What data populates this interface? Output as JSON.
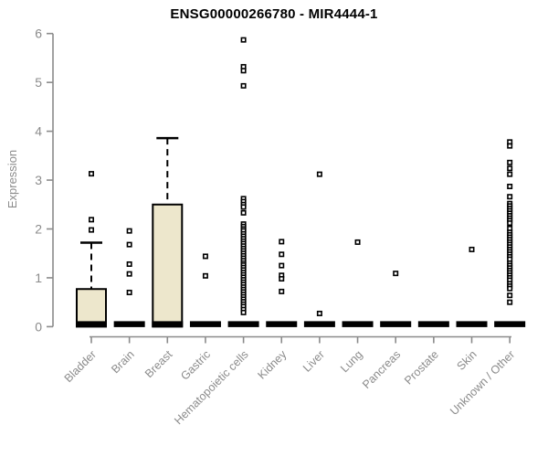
{
  "title": "ENSG00000266780 - MIR4444-1",
  "colors": {
    "background": "#ffffff",
    "box_fill": "#ede7cc",
    "box_border": "#000000",
    "median": "#000000",
    "outlier_stroke": "#000000",
    "outlier_fill": "#ffffff",
    "axis": "#8b8b8b",
    "tick_label": "#8b8b8b",
    "title_color": "#000000"
  },
  "chart_data": {
    "type": "boxplot",
    "title": "ENSG00000266780 - MIR4444-1",
    "xlabel": "",
    "ylabel": "Expression",
    "ylim": [
      0,
      6
    ],
    "yticks": [
      0,
      1,
      2,
      3,
      4,
      5,
      6
    ],
    "grid": false,
    "legend": "none",
    "categories": [
      "Bladder",
      "Brain",
      "Breast",
      "Gastric",
      "Hematopoietic cells",
      "Kidney",
      "Liver",
      "Lung",
      "Pancreas",
      "Prostate",
      "Skin",
      "Unknown / Other"
    ],
    "series": [
      {
        "category": "Bladder",
        "whisker_low": 0,
        "q1": 0,
        "median": 0,
        "q3": 0.77,
        "whisker_high": 1.72,
        "outliers": [
          3.13,
          2.19,
          1.98
        ]
      },
      {
        "category": "Brain",
        "whisker_low": 0,
        "q1": 0,
        "median": 0,
        "q3": 0,
        "whisker_high": 0,
        "outliers": [
          1.96,
          1.68,
          1.28,
          1.08,
          0.7
        ]
      },
      {
        "category": "Breast",
        "whisker_low": 0,
        "q1": 0,
        "median": 0,
        "q3": 2.5,
        "whisker_high": 3.86,
        "outliers": []
      },
      {
        "category": "Gastric",
        "whisker_low": 0,
        "q1": 0,
        "median": 0,
        "q3": 0,
        "whisker_high": 0,
        "outliers": [
          1.44,
          1.04
        ]
      },
      {
        "category": "Hematopoietic cells",
        "whisker_low": 0,
        "q1": 0,
        "median": 0,
        "q3": 0,
        "whisker_high": 0,
        "outliers": [
          5.87,
          5.32,
          5.24,
          4.93,
          2.62,
          2.56,
          2.5,
          2.45,
          2.33,
          2.1,
          2.05,
          2.0,
          1.96,
          1.9,
          1.85,
          1.8,
          1.75,
          1.7,
          1.65,
          1.6,
          1.55,
          1.5,
          1.45,
          1.4,
          1.35,
          1.3,
          1.26,
          1.21,
          1.16,
          1.11,
          1.06,
          1.01,
          0.96,
          0.91,
          0.86,
          0.81,
          0.76,
          0.71,
          0.66,
          0.61,
          0.56,
          0.51,
          0.46,
          0.41,
          0.35,
          0.29
        ]
      },
      {
        "category": "Kidney",
        "whisker_low": 0,
        "q1": 0,
        "median": 0,
        "q3": 0,
        "whisker_high": 0,
        "outliers": [
          1.74,
          1.48,
          1.25,
          1.05,
          0.98,
          0.72
        ]
      },
      {
        "category": "Liver",
        "whisker_low": 0,
        "q1": 0,
        "median": 0,
        "q3": 0,
        "whisker_high": 0,
        "outliers": [
          3.12,
          0.27
        ]
      },
      {
        "category": "Lung",
        "whisker_low": 0,
        "q1": 0,
        "median": 0,
        "q3": 0,
        "whisker_high": 0,
        "outliers": [
          1.73
        ]
      },
      {
        "category": "Pancreas",
        "whisker_low": 0,
        "q1": 0,
        "median": 0,
        "q3": 0,
        "whisker_high": 0,
        "outliers": [
          1.09
        ]
      },
      {
        "category": "Prostate",
        "whisker_low": 0,
        "q1": 0,
        "median": 0,
        "q3": 0,
        "whisker_high": 0,
        "outliers": []
      },
      {
        "category": "Skin",
        "whisker_low": 0,
        "q1": 0,
        "median": 0,
        "q3": 0,
        "whisker_high": 0,
        "outliers": [
          1.58
        ]
      },
      {
        "category": "Unknown / Other",
        "whisker_low": 0,
        "q1": 0,
        "median": 0,
        "q3": 0,
        "whisker_high": 0,
        "outliers": [
          3.78,
          3.7,
          3.36,
          3.24,
          3.12,
          2.87,
          2.66,
          2.52,
          2.47,
          2.42,
          2.37,
          2.32,
          2.27,
          2.22,
          2.17,
          2.12,
          2.01,
          1.93,
          1.88,
          1.83,
          1.78,
          1.73,
          1.68,
          1.63,
          1.58,
          1.53,
          1.48,
          1.43,
          1.38,
          1.3,
          1.25,
          1.2,
          1.15,
          1.1,
          1.05,
          1.0,
          0.95,
          0.88,
          0.83,
          0.78,
          0.64,
          0.5
        ]
      }
    ]
  }
}
